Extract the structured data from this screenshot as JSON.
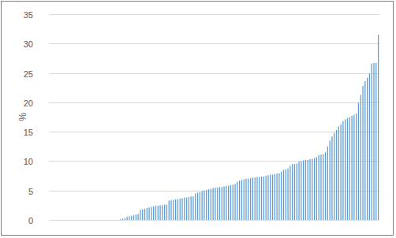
{
  "chart_data": {
    "type": "bar",
    "y_label": "%",
    "categories": [
      null,
      null,
      null,
      null,
      null,
      null,
      null,
      null,
      null,
      null,
      null,
      null,
      null,
      null,
      null,
      null,
      null,
      null,
      null,
      null,
      null,
      null,
      null,
      null,
      null,
      null,
      null,
      null,
      null,
      null,
      null,
      null,
      null,
      null,
      null,
      null,
      null,
      null,
      null,
      null,
      null,
      null,
      null,
      null,
      null,
      null,
      null,
      null,
      null,
      null,
      null,
      null,
      null,
      null,
      null,
      null,
      null,
      null,
      null,
      null,
      null,
      null,
      null,
      null,
      null,
      null,
      null,
      null,
      null,
      null,
      null,
      null,
      null,
      null,
      null,
      null,
      null,
      null,
      null,
      null,
      null,
      null,
      null,
      null,
      null,
      null,
      null,
      null,
      null,
      null,
      null,
      null,
      null,
      null,
      null,
      null,
      null,
      null,
      null,
      null,
      null,
      null,
      null,
      null,
      null,
      null,
      null,
      null,
      null,
      null,
      null,
      null,
      null,
      null,
      null,
      null,
      null,
      null,
      null,
      null,
      null,
      null,
      null,
      null,
      null,
      null,
      null,
      null,
      null,
      null,
      null,
      null,
      null,
      null,
      null,
      null,
      null,
      null,
      null,
      null,
      null,
      null,
      null,
      null,
      null,
      null,
      null,
      null,
      null,
      null
    ],
    "values": [
      0,
      0,
      0,
      0,
      0,
      0,
      0,
      0,
      0,
      0,
      0,
      0,
      0,
      0,
      0,
      0,
      0,
      0,
      0,
      0,
      0,
      0,
      0,
      0,
      0,
      0,
      0,
      0,
      0,
      0,
      0,
      0,
      0.1,
      0.2,
      0.3,
      0.5,
      0.6,
      0.7,
      0.8,
      0.9,
      1.0,
      1.7,
      1.8,
      1.9,
      2.0,
      2.1,
      2.2,
      2.3,
      2.4,
      2.4,
      2.5,
      2.5,
      2.6,
      2.6,
      3.3,
      3.4,
      3.4,
      3.5,
      3.5,
      3.6,
      3.7,
      3.8,
      3.8,
      3.9,
      4.0,
      4.0,
      4.5,
      4.6,
      4.7,
      4.9,
      5.0,
      5.1,
      5.2,
      5.3,
      5.4,
      5.5,
      5.5,
      5.6,
      5.6,
      5.7,
      5.8,
      5.8,
      5.9,
      6.0,
      6.1,
      6.5,
      6.7,
      6.8,
      6.9,
      7.0,
      7.0,
      7.1,
      7.2,
      7.2,
      7.3,
      7.3,
      7.4,
      7.4,
      7.5,
      7.6,
      7.7,
      7.7,
      7.8,
      7.9,
      7.9,
      8.2,
      8.5,
      8.6,
      8.7,
      9.2,
      9.5,
      9.5,
      9.6,
      9.9,
      10.0,
      10.1,
      10.2,
      10.2,
      10.3,
      10.4,
      10.5,
      10.7,
      11.0,
      11.1,
      11.2,
      11.5,
      12.5,
      13.5,
      14.2,
      14.8,
      15.3,
      15.9,
      16.3,
      16.8,
      17.1,
      17.3,
      17.5,
      17.7,
      17.9,
      18.1,
      19.9,
      21.3,
      22.8,
      23.6,
      24.2,
      24.9,
      26.6,
      26.7,
      26.7,
      31.5
    ],
    "color": "#5b9bd5",
    "ylim": [
      0,
      35
    ],
    "yticks": [
      0,
      5,
      10,
      15,
      20,
      25,
      30,
      35
    ],
    "grid": true,
    "tick_labels": "y"
  }
}
